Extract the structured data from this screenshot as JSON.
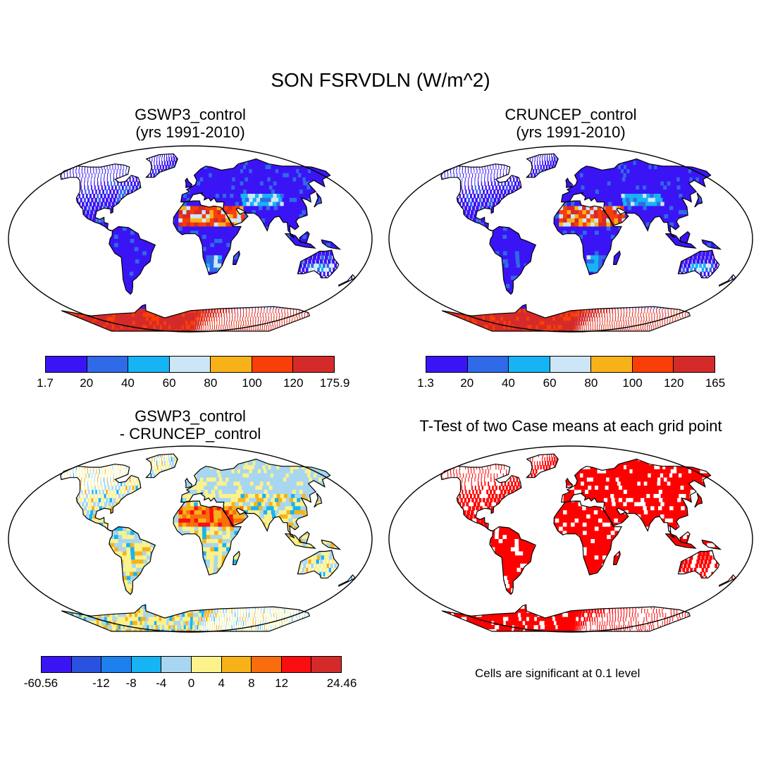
{
  "figure": {
    "title": "SON FSRVDLN (W/m^2)"
  },
  "panels": [
    {
      "id": "gswp3",
      "title": "GSWP3_control\n(yrs 1991-2010)",
      "colorbar": {
        "colors": [
          "#3b14f5",
          "#2f6ae8",
          "#16b4f5",
          "#cce6f7",
          "#f7b21a",
          "#f93e08",
          "#d42a2a"
        ],
        "labels": [
          "1.7",
          "20",
          "40",
          "60",
          "80",
          "100",
          "120",
          "175.9"
        ]
      }
    },
    {
      "id": "cruncep",
      "title": "CRUNCEP_control\n(yrs 1991-2010)",
      "colorbar": {
        "colors": [
          "#3b14f5",
          "#2f6ae8",
          "#16b4f5",
          "#cce6f7",
          "#f7b21a",
          "#f93e08",
          "#d42a2a"
        ],
        "labels": [
          "1.3",
          "20",
          "40",
          "60",
          "80",
          "100",
          "120",
          "165"
        ]
      }
    },
    {
      "id": "diff",
      "title": "GSWP3_control\n- CRUNCEP_control",
      "colorbar": {
        "colors": [
          "#3b14f5",
          "#2a52e0",
          "#1e80ee",
          "#16b4f5",
          "#a8d6f0",
          "#fbf28c",
          "#f7b21a",
          "#f86e0c",
          "#f90f0f",
          "#d42a2a"
        ],
        "labels": [
          "-60.56",
          "",
          "-12",
          "-8",
          "-4",
          "0",
          "4",
          "8",
          "12",
          "",
          "24.46"
        ]
      }
    },
    {
      "id": "ttest",
      "title": "T-Test of two Case means at each grid point",
      "note": "Cells are significant at 0.1 level",
      "sig_color": "#ff0000"
    }
  ]
}
